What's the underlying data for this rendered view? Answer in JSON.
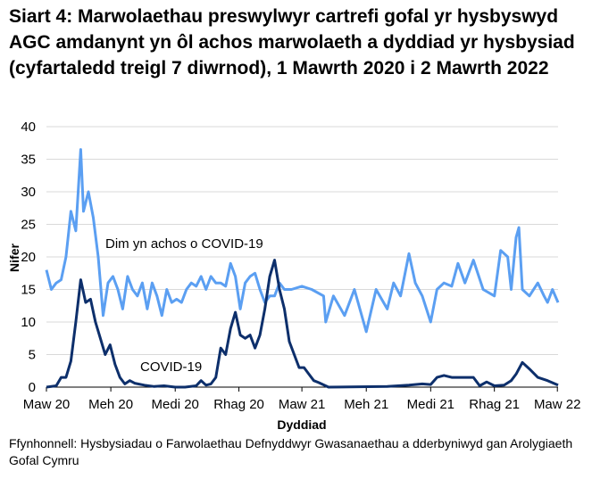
{
  "chart_data": {
    "type": "line",
    "title": "Siart 4: Marwolaethau preswylwyr cartrefi gofal yr hysbyswyd AGC amdanynt yn ôl achos marwolaeth a dyddiad yr hysbysiad (cyfartaledd treigl 7 diwrnod), 1 Mawrth 2020 i 2 Mawrth 2022",
    "xlabel": "Dyddiad",
    "ylabel": "Nifer",
    "ylim": [
      0,
      40
    ],
    "yticks": [
      "0",
      "5",
      "10",
      "15",
      "20",
      "25",
      "30",
      "35",
      "40"
    ],
    "xlim": [
      "2020-03-01",
      "2022-03-02"
    ],
    "xticks": [
      {
        "date": "2020-03-01",
        "label": "Maw 20"
      },
      {
        "date": "2020-06-01",
        "label": "Meh 20"
      },
      {
        "date": "2020-09-01",
        "label": "Medi 20"
      },
      {
        "date": "2020-12-01",
        "label": "Rhag 20"
      },
      {
        "date": "2021-03-01",
        "label": "Maw 21"
      },
      {
        "date": "2021-06-01",
        "label": "Meh 21"
      },
      {
        "date": "2021-09-01",
        "label": "Medi 21"
      },
      {
        "date": "2021-12-01",
        "label": "Rhag 21"
      },
      {
        "date": "2022-03-01",
        "label": "Maw 22"
      }
    ],
    "grid": true,
    "legend": "inline labels",
    "series": [
      {
        "name": "Dim yn achos o COVID-19",
        "color": "#5b9ff2",
        "points": [
          [
            "2020-03-01",
            18
          ],
          [
            "2020-03-08",
            15
          ],
          [
            "2020-03-15",
            16
          ],
          [
            "2020-03-22",
            16.5
          ],
          [
            "2020-03-29",
            20
          ],
          [
            "2020-04-05",
            27
          ],
          [
            "2020-04-12",
            24
          ],
          [
            "2020-04-19",
            36.5
          ],
          [
            "2020-04-23",
            27
          ],
          [
            "2020-04-30",
            30
          ],
          [
            "2020-05-07",
            26
          ],
          [
            "2020-05-14",
            20
          ],
          [
            "2020-05-21",
            11
          ],
          [
            "2020-05-28",
            16
          ],
          [
            "2020-06-04",
            17
          ],
          [
            "2020-06-11",
            15
          ],
          [
            "2020-06-18",
            12
          ],
          [
            "2020-06-25",
            17
          ],
          [
            "2020-07-02",
            15
          ],
          [
            "2020-07-09",
            14
          ],
          [
            "2020-07-16",
            16
          ],
          [
            "2020-07-23",
            12
          ],
          [
            "2020-07-30",
            16
          ],
          [
            "2020-08-06",
            14
          ],
          [
            "2020-08-13",
            11
          ],
          [
            "2020-08-20",
            15
          ],
          [
            "2020-08-27",
            13
          ],
          [
            "2020-09-03",
            13.5
          ],
          [
            "2020-09-10",
            13
          ],
          [
            "2020-09-17",
            15
          ],
          [
            "2020-09-24",
            16
          ],
          [
            "2020-10-01",
            15.5
          ],
          [
            "2020-10-08",
            17
          ],
          [
            "2020-10-15",
            15
          ],
          [
            "2020-10-22",
            17
          ],
          [
            "2020-10-29",
            16
          ],
          [
            "2020-11-05",
            16
          ],
          [
            "2020-11-12",
            15.5
          ],
          [
            "2020-11-19",
            19
          ],
          [
            "2020-11-26",
            17
          ],
          [
            "2020-12-03",
            12
          ],
          [
            "2020-12-10",
            16
          ],
          [
            "2020-12-17",
            17
          ],
          [
            "2020-12-24",
            17.5
          ],
          [
            "2020-12-31",
            15
          ],
          [
            "2021-01-07",
            13
          ],
          [
            "2021-01-14",
            14
          ],
          [
            "2021-01-21",
            14
          ],
          [
            "2021-01-28",
            16
          ],
          [
            "2021-02-04",
            15
          ],
          [
            "2021-02-14",
            15
          ],
          [
            "2021-03-01",
            15.5
          ],
          [
            "2021-03-15",
            15
          ],
          [
            "2021-04-01",
            14
          ],
          [
            "2021-04-04",
            10
          ],
          [
            "2021-04-15",
            14
          ],
          [
            "2021-05-01",
            11
          ],
          [
            "2021-05-15",
            15
          ],
          [
            "2021-06-01",
            8.5
          ],
          [
            "2021-06-15",
            15
          ],
          [
            "2021-07-01",
            12
          ],
          [
            "2021-07-10",
            16
          ],
          [
            "2021-07-20",
            14
          ],
          [
            "2021-08-01",
            20.5
          ],
          [
            "2021-08-10",
            16
          ],
          [
            "2021-08-20",
            14
          ],
          [
            "2021-09-01",
            10
          ],
          [
            "2021-09-10",
            15
          ],
          [
            "2021-09-20",
            16
          ],
          [
            "2021-10-01",
            15.5
          ],
          [
            "2021-10-10",
            19
          ],
          [
            "2021-10-20",
            16
          ],
          [
            "2021-11-01",
            19.5
          ],
          [
            "2021-11-15",
            15
          ],
          [
            "2021-12-01",
            14
          ],
          [
            "2021-12-10",
            21
          ],
          [
            "2021-12-20",
            20
          ],
          [
            "2021-12-25",
            15
          ],
          [
            "2022-01-01",
            23
          ],
          [
            "2022-01-05",
            24.5
          ],
          [
            "2022-01-10",
            15
          ],
          [
            "2022-01-20",
            14
          ],
          [
            "2022-02-01",
            16
          ],
          [
            "2022-02-10",
            14
          ],
          [
            "2022-02-15",
            13
          ],
          [
            "2022-02-22",
            15
          ],
          [
            "2022-03-02",
            13
          ]
        ]
      },
      {
        "name": "COVID-19",
        "color": "#0d2f6b",
        "points": [
          [
            "2020-03-01",
            0
          ],
          [
            "2020-03-15",
            0.2
          ],
          [
            "2020-03-22",
            1.5
          ],
          [
            "2020-03-29",
            1.5
          ],
          [
            "2020-04-05",
            4
          ],
          [
            "2020-04-12",
            10
          ],
          [
            "2020-04-19",
            16.5
          ],
          [
            "2020-04-26",
            13
          ],
          [
            "2020-05-03",
            13.5
          ],
          [
            "2020-05-10",
            10
          ],
          [
            "2020-05-17",
            7.5
          ],
          [
            "2020-05-24",
            5
          ],
          [
            "2020-05-31",
            6.5
          ],
          [
            "2020-06-07",
            3.5
          ],
          [
            "2020-06-14",
            1.5
          ],
          [
            "2020-06-21",
            0.5
          ],
          [
            "2020-06-28",
            1
          ],
          [
            "2020-07-05",
            0.6
          ],
          [
            "2020-07-19",
            0.3
          ],
          [
            "2020-08-02",
            0.1
          ],
          [
            "2020-08-16",
            0.2
          ],
          [
            "2020-09-01",
            0
          ],
          [
            "2020-09-15",
            0
          ],
          [
            "2020-10-01",
            0.2
          ],
          [
            "2020-10-08",
            1
          ],
          [
            "2020-10-15",
            0.3
          ],
          [
            "2020-10-22",
            0.5
          ],
          [
            "2020-10-29",
            1.5
          ],
          [
            "2020-11-05",
            6
          ],
          [
            "2020-11-12",
            5
          ],
          [
            "2020-11-19",
            9
          ],
          [
            "2020-11-26",
            11.5
          ],
          [
            "2020-12-03",
            8
          ],
          [
            "2020-12-10",
            7.5
          ],
          [
            "2020-12-17",
            8
          ],
          [
            "2020-12-24",
            6
          ],
          [
            "2020-12-31",
            8
          ],
          [
            "2021-01-07",
            12
          ],
          [
            "2021-01-14",
            17
          ],
          [
            "2021-01-21",
            19.5
          ],
          [
            "2021-01-28",
            15
          ],
          [
            "2021-02-04",
            12
          ],
          [
            "2021-02-11",
            7
          ],
          [
            "2021-02-18",
            5
          ],
          [
            "2021-02-25",
            3
          ],
          [
            "2021-03-04",
            3
          ],
          [
            "2021-03-11",
            2
          ],
          [
            "2021-03-18",
            1
          ],
          [
            "2021-03-25",
            0.7
          ],
          [
            "2021-04-08",
            0
          ],
          [
            "2021-07-01",
            0.1
          ],
          [
            "2021-08-01",
            0.3
          ],
          [
            "2021-08-20",
            0.5
          ],
          [
            "2021-09-01",
            0.4
          ],
          [
            "2021-09-10",
            1.5
          ],
          [
            "2021-09-20",
            1.8
          ],
          [
            "2021-10-01",
            1.5
          ],
          [
            "2021-10-15",
            1.5
          ],
          [
            "2021-11-01",
            1.5
          ],
          [
            "2021-11-10",
            0.2
          ],
          [
            "2021-11-20",
            0.8
          ],
          [
            "2021-12-01",
            0.2
          ],
          [
            "2021-12-15",
            0.3
          ],
          [
            "2021-12-25",
            1
          ],
          [
            "2022-01-01",
            2
          ],
          [
            "2022-01-10",
            3.8
          ],
          [
            "2022-01-20",
            2.8
          ],
          [
            "2022-02-01",
            1.5
          ],
          [
            "2022-02-15",
            1
          ],
          [
            "2022-03-02",
            0.3
          ]
        ]
      }
    ],
    "source": "Ffynhonnell: Hysbysiadau o Farwolaethau Defnyddwyr Gwasanaethau a dderbyniwyd gan Arolygiaeth Gofal Cymru"
  }
}
